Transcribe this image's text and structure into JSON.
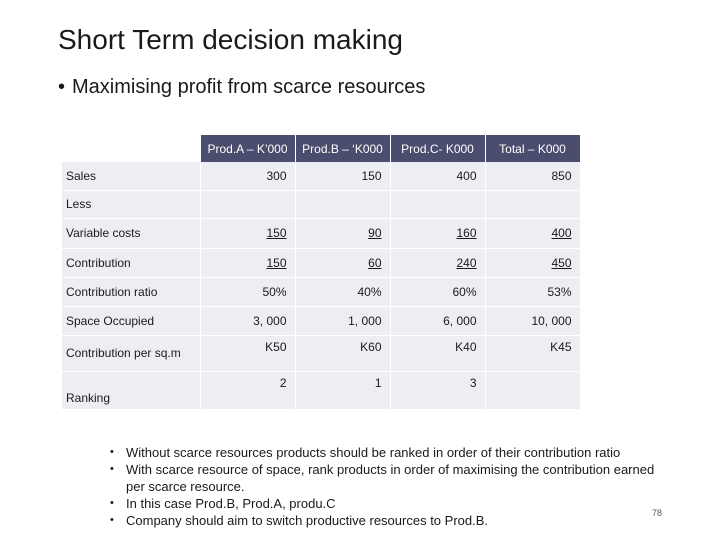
{
  "title": "Short Term decision making",
  "subtitle": "Maximising profit from scarce resources",
  "table": {
    "headers": [
      "",
      "Prod.A – K’000",
      "Prod.B – ‘K000",
      "Prod.C- K000",
      "Total – K000"
    ],
    "rows": {
      "sales": {
        "label": "Sales",
        "values": [
          "300",
          "150",
          "400",
          "850"
        ]
      },
      "less": {
        "label": "Less"
      },
      "variable": {
        "label": "Variable costs",
        "values": [
          "150",
          "90",
          "160",
          "400"
        ]
      },
      "contribution": {
        "label": "Contribution",
        "values": [
          "150",
          "60",
          "240",
          "450"
        ]
      },
      "ratio": {
        "label": "Contribution ratio",
        "values": [
          "50%",
          "40%",
          "60%",
          "53%"
        ]
      },
      "space": {
        "label": "Space Occupied",
        "values": [
          "3, 000",
          "1, 000",
          "6, 000",
          "10, 000"
        ]
      },
      "per_sqm": {
        "label": "Contribution per sq.m",
        "values": [
          "K50",
          "K60",
          "K40",
          "K45"
        ]
      },
      "ranking": {
        "label": "Ranking",
        "values": [
          "2",
          "1",
          "3",
          ""
        ]
      }
    }
  },
  "bullets": [
    "Without scarce resources products should be ranked in order of their contribution ratio",
    "With scarce resource of space, rank products in order of maximising the contribution earned per scarce resource.",
    "In this case Prod.B, Prod.A, produ.C",
    "Company should aim to switch productive resources to Prod.B."
  ],
  "page_number": "78"
}
